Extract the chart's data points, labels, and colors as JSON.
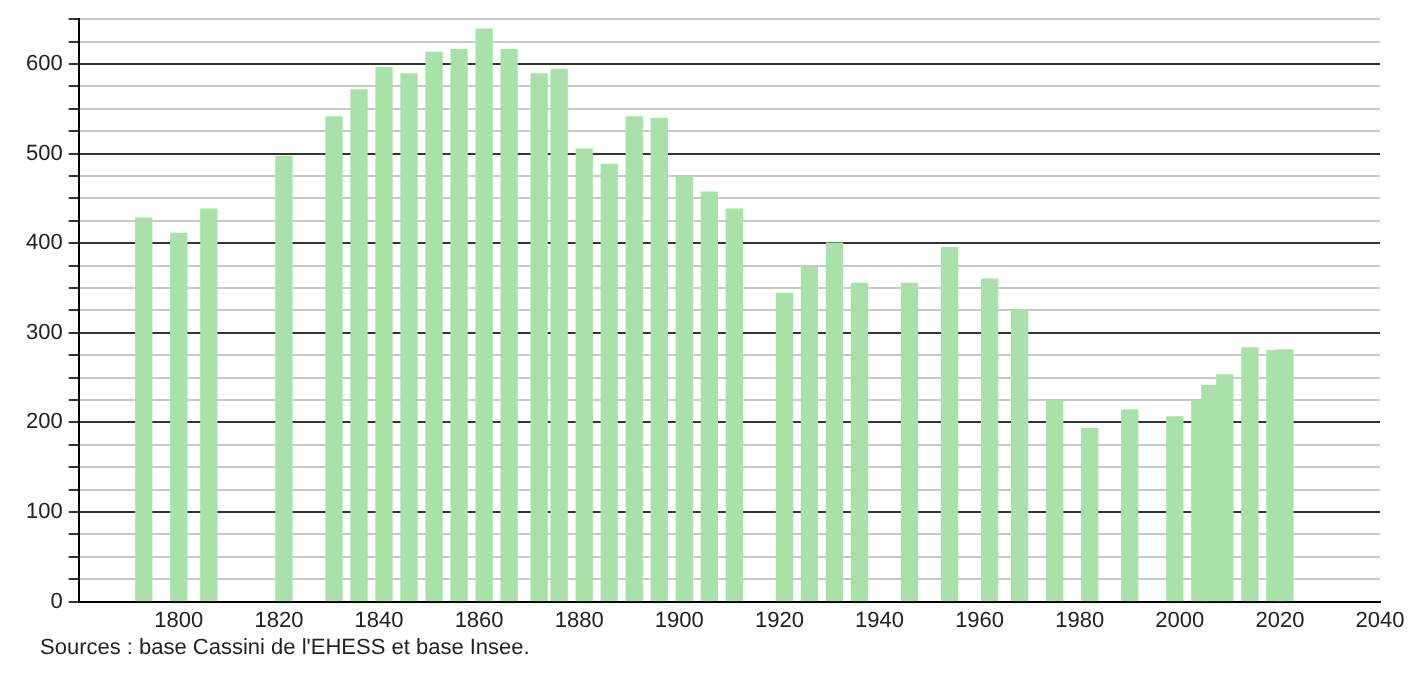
{
  "chart_data": {
    "type": "bar",
    "x": [
      1793,
      1800,
      1806,
      1821,
      1831,
      1836,
      1841,
      1846,
      1851,
      1856,
      1861,
      1866,
      1872,
      1876,
      1881,
      1886,
      1891,
      1896,
      1901,
      1906,
      1911,
      1921,
      1926,
      1931,
      1936,
      1946,
      1954,
      1962,
      1968,
      1975,
      1982,
      1990,
      1999,
      2004,
      2006,
      2009,
      2014,
      2019,
      2021
    ],
    "values": [
      428,
      411,
      438,
      497,
      541,
      571,
      596,
      589,
      613,
      616,
      639,
      616,
      589,
      594,
      505,
      488,
      541,
      539,
      474,
      457,
      438,
      344,
      374,
      400,
      355,
      355,
      395,
      360,
      325,
      224,
      193,
      214,
      206,
      224,
      241,
      253,
      283,
      280,
      281
    ],
    "color": "#a8e2a8",
    "xlim": [
      1780,
      2040
    ],
    "xticks": [
      1800,
      1820,
      1840,
      1860,
      1880,
      1900,
      1920,
      1940,
      1960,
      1980,
      2000,
      2020,
      2040
    ],
    "ylim": [
      0,
      650
    ],
    "yticks": [
      0,
      {
        "value": 25,
        "label": null
      },
      {
        "value": 50,
        "label": null
      },
      {
        "value": 75,
        "label": null
      },
      100,
      {
        "value": 125,
        "label": null
      },
      {
        "value": 150,
        "label": null
      },
      {
        "value": 175,
        "label": null
      },
      200,
      {
        "value": 225,
        "label": null
      },
      {
        "value": 250,
        "label": null
      },
      {
        "value": 275,
        "label": null
      },
      300,
      {
        "value": 325,
        "label": null
      },
      {
        "value": 350,
        "label": null
      },
      {
        "value": 375,
        "label": null
      },
      400,
      {
        "value": 425,
        "label": null
      },
      {
        "value": 450,
        "label": null
      },
      {
        "value": 475,
        "label": null
      },
      500,
      {
        "value": 525,
        "label": null
      },
      {
        "value": 550,
        "label": null
      },
      {
        "value": 575,
        "label": null
      },
      600,
      {
        "value": 625,
        "label": null
      },
      {
        "value": 650,
        "label": null
      }
    ],
    "grid": "y",
    "annotations": [
      "Sources : base Cassini de l'EHESS et base Insee."
    ]
  }
}
